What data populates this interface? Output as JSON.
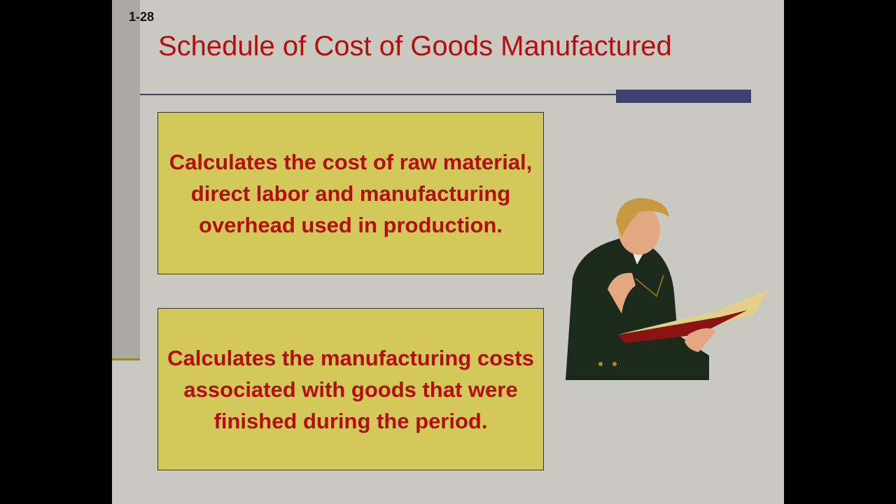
{
  "slide": {
    "number": "1-28",
    "title": "Schedule of Cost of Goods Manufactured",
    "boxes": [
      {
        "text": "Calculates the cost of raw material, direct labor and manufacturing overhead used in production."
      },
      {
        "text": "Calculates the manufacturing costs associated with goods that were finished during the period."
      }
    ],
    "illustration": "woman-reading-book",
    "colors": {
      "title": "#b30f0f",
      "box_fill": "#d3c95a",
      "accent_bar": "#3b4272",
      "background": "#c9c9c1"
    }
  }
}
